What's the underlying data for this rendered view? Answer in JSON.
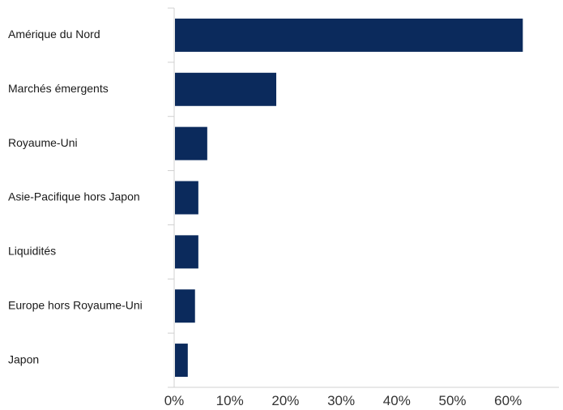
{
  "chart_data": {
    "type": "bar",
    "orientation": "horizontal",
    "categories": [
      "Amérique du Nord",
      "Marchés émergents",
      "Royaume-Uni",
      "Asie-Pacifique hors Japon",
      "Liquidités",
      "Europe hors Royaume-Uni",
      "Japon"
    ],
    "values": [
      62.5,
      18.2,
      5.8,
      4.2,
      4.2,
      3.6,
      2.3
    ],
    "unit": "%",
    "xlim": [
      0,
      70
    ],
    "x_ticks": [
      "0%",
      "10%",
      "20%",
      "30%",
      "40%",
      "50%",
      "60%"
    ],
    "title": "",
    "xlabel": "",
    "ylabel": "",
    "grid": false,
    "legend": "none",
    "bar_color": "#0b2a5c",
    "axis_color": "#d0d0d0"
  }
}
